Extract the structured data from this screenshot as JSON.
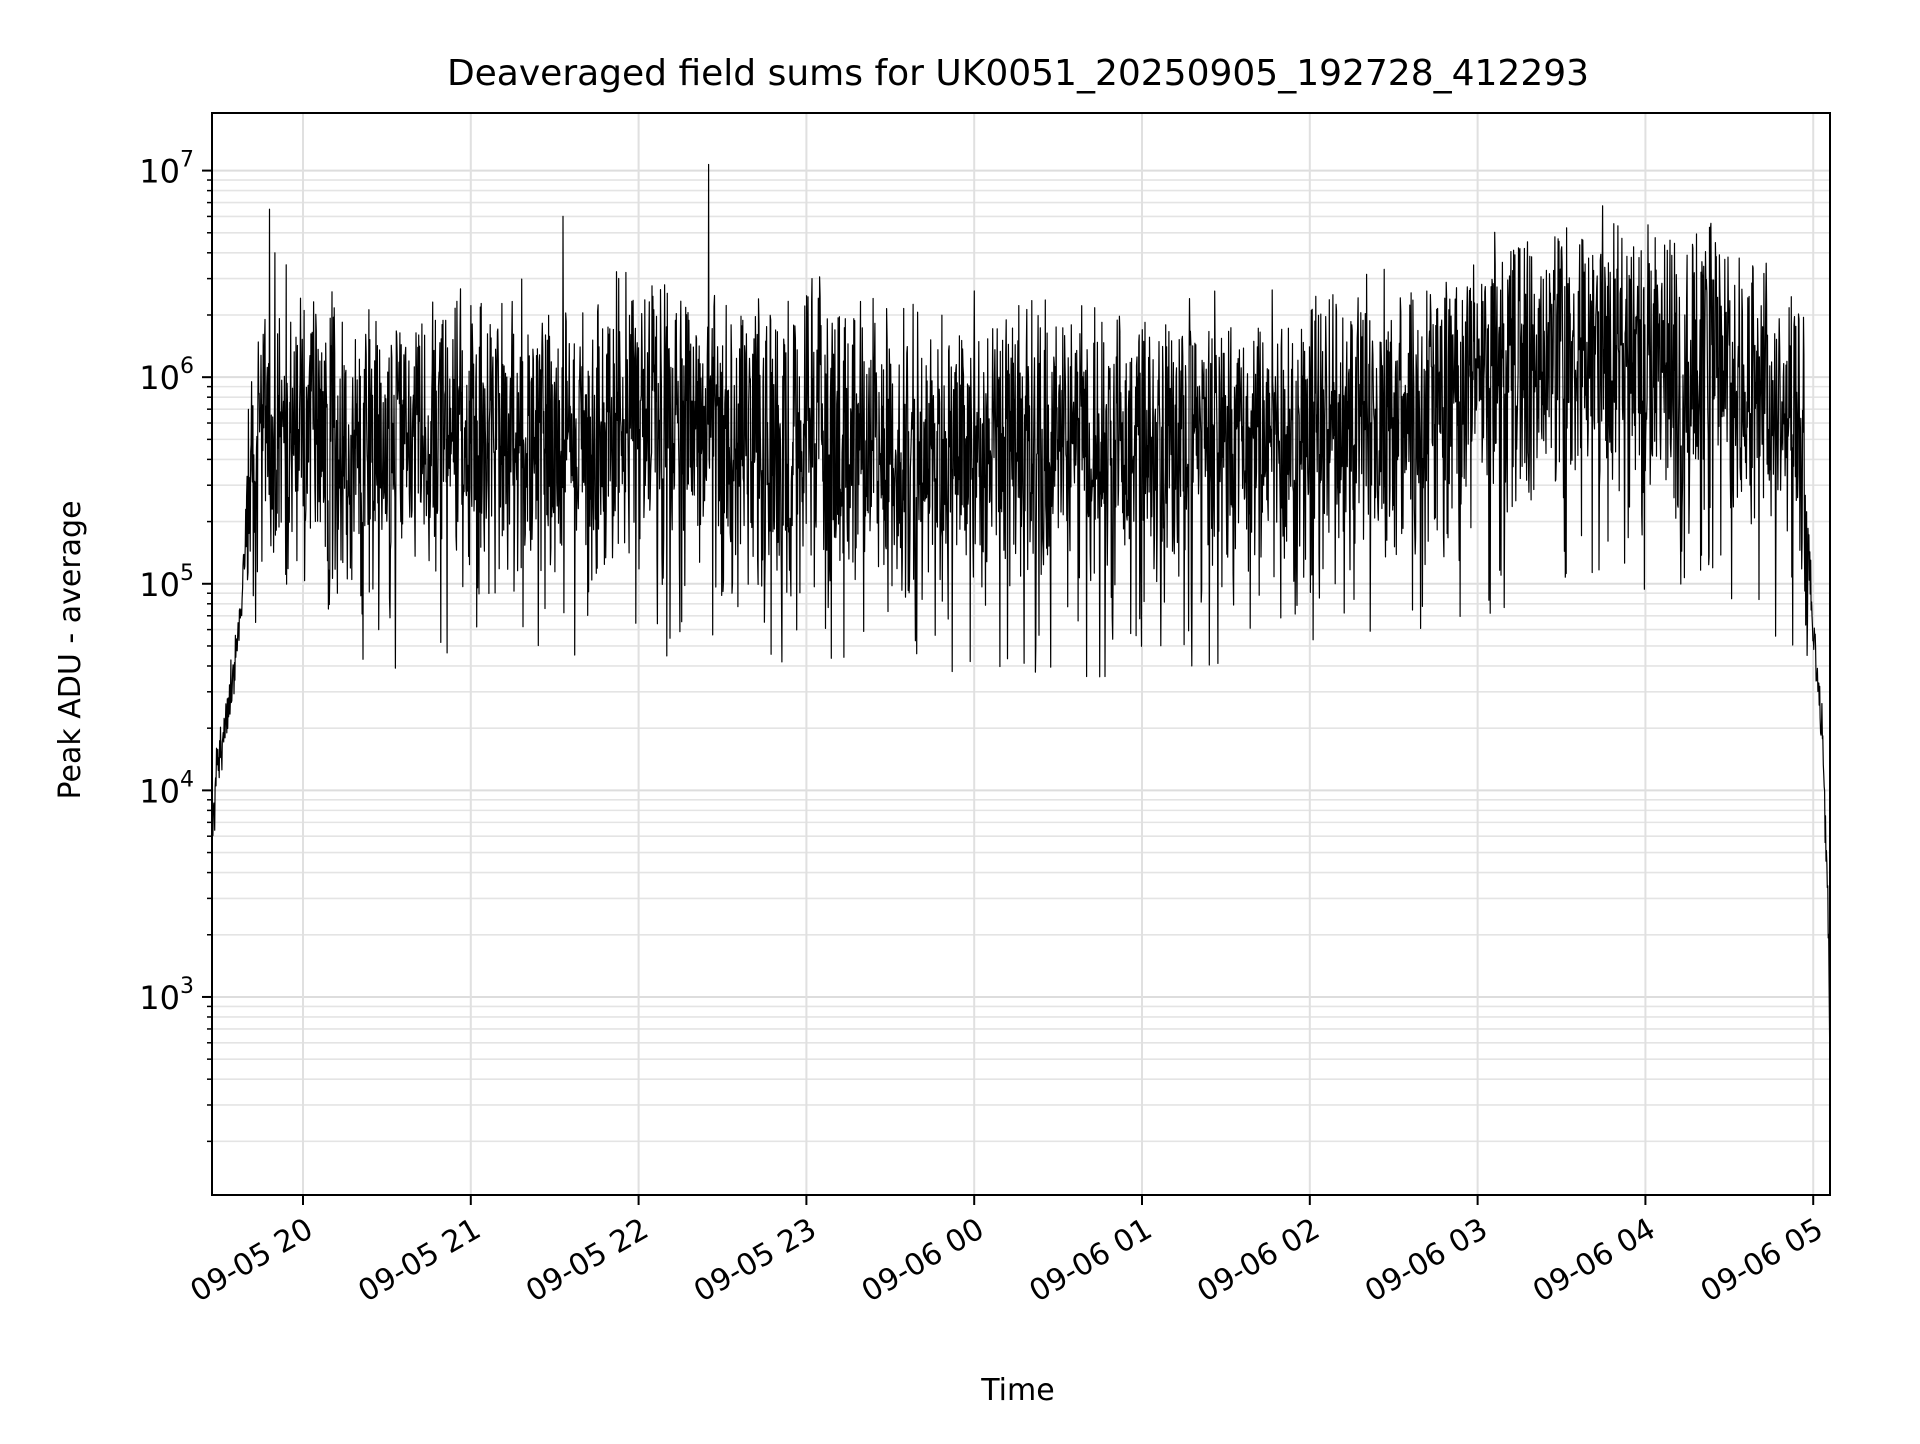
{
  "chart_data": {
    "type": "line",
    "title": "Deaveraged field sums for UK0051_20250905_192728_412293",
    "xlabel": "Time",
    "ylabel": "Peak ADU - average",
    "xscale": "time",
    "yscale": "log",
    "grid": true,
    "legend": "none",
    "line_color": "#000000",
    "xlim": [
      "2025-09-05 19:27:28",
      "2025-09-06 05:06:00"
    ],
    "ylim": [
      110,
      19000000
    ],
    "x_ticks": [
      {
        "value": "2025-09-05 20:00",
        "label": "09-05 20"
      },
      {
        "value": "2025-09-05 21:00",
        "label": "09-05 21"
      },
      {
        "value": "2025-09-05 22:00",
        "label": "09-05 22"
      },
      {
        "value": "2025-09-05 23:00",
        "label": "09-05 23"
      },
      {
        "value": "2025-09-06 00:00",
        "label": "09-06 00"
      },
      {
        "value": "2025-09-06 01:00",
        "label": "09-06 01"
      },
      {
        "value": "2025-09-06 02:00",
        "label": "09-06 02"
      },
      {
        "value": "2025-09-06 03:00",
        "label": "09-06 03"
      },
      {
        "value": "2025-09-06 04:00",
        "label": "09-06 04"
      },
      {
        "value": "2025-09-06 05:00",
        "label": "09-06 05"
      }
    ],
    "y_ticks": [
      {
        "value": 1000,
        "mantissa": "10",
        "exponent": "3"
      },
      {
        "value": 10000,
        "mantissa": "10",
        "exponent": "4"
      },
      {
        "value": 100000,
        "mantissa": "10",
        "exponent": "5"
      },
      {
        "value": 1000000,
        "mantissa": "10",
        "exponent": "6"
      },
      {
        "value": 10000000,
        "mantissa": "10",
        "exponent": "7"
      }
    ],
    "series": [
      {
        "note_envelope": "approximate envelope; rendered as a dense noisy trace",
        "x": [
          "2025-09-05 19:27:28",
          "2025-09-05 19:29",
          "2025-09-05 19:32",
          "2025-09-05 19:36",
          "2025-09-05 19:40",
          "2025-09-05 19:45",
          "2025-09-05 19:50",
          "2025-09-05 20:00",
          "2025-09-05 20:30",
          "2025-09-05 21:00",
          "2025-09-05 21:30",
          "2025-09-05 22:00",
          "2025-09-05 22:30",
          "2025-09-05 23:00",
          "2025-09-05 23:30",
          "2025-09-06 00:00",
          "2025-09-06 00:30",
          "2025-09-06 01:00",
          "2025-09-06 01:30",
          "2025-09-06 02:00",
          "2025-09-06 02:30",
          "2025-09-06 03:00",
          "2025-09-06 03:30",
          "2025-09-06 04:00",
          "2025-09-06 04:30",
          "2025-09-06 04:50",
          "2025-09-06 04:57",
          "2025-09-06 05:00",
          "2025-09-06 05:03",
          "2025-09-06 05:05",
          "2025-09-06 05:06"
        ],
        "y": [
          6000,
          12000,
          22000,
          40000,
          200000,
          700000,
          600000,
          500000,
          480000,
          500000,
          530000,
          560000,
          540000,
          520000,
          480000,
          450000,
          440000,
          430000,
          470000,
          540000,
          660000,
          860000,
          1200000,
          1180000,
          1050000,
          620000,
          380000,
          60000,
          20000,
          4000,
          550
        ]
      }
    ],
    "spikes": [
      {
        "x": "2025-09-05 19:48",
        "y": 6500000
      },
      {
        "x": "2025-09-05 19:50",
        "y": 4000000
      },
      {
        "x": "2025-09-05 19:54",
        "y": 3500000
      },
      {
        "x": "2025-09-05 21:33",
        "y": 6000000
      },
      {
        "x": "2025-09-05 22:25",
        "y": 10700000
      },
      {
        "x": "2025-09-05 23:02",
        "y": 3000000
      },
      {
        "x": "2025-09-06 03:55",
        "y": 3800000
      },
      {
        "x": "2025-09-06 04:17",
        "y": 4200000
      }
    ]
  }
}
